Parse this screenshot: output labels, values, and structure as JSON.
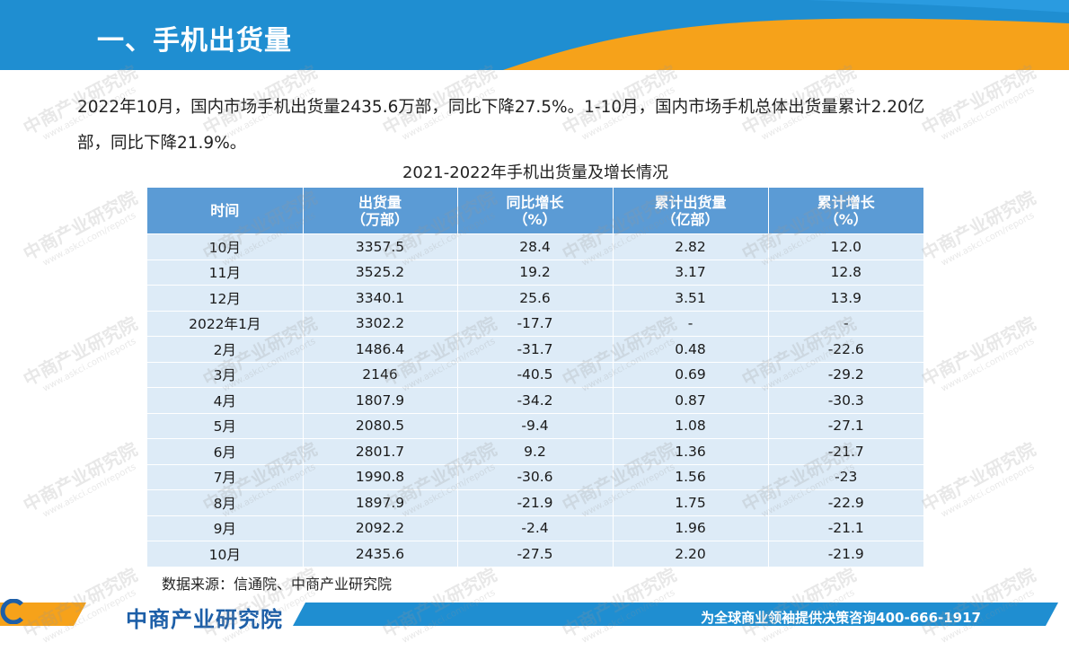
{
  "header": {
    "title": "一、手机出货量",
    "colors": {
      "bar": "#1f8ed1",
      "accent": "#f6a21a"
    }
  },
  "intro": {
    "line1": "2022年10月，国内市场手机出货量2435.6万部，同比下降27.5%。1-10月，国内市场手机总体出货量累计2.20亿",
    "line2": "部，同比下降21.9%。"
  },
  "table": {
    "caption": "2021-2022年手机出货量及增长情况",
    "headers": [
      {
        "line1": "时间",
        "line2": ""
      },
      {
        "line1": "出货量",
        "line2": "（万部）"
      },
      {
        "line1": "同比增长",
        "line2": "（%）"
      },
      {
        "line1": "累计出货量",
        "line2": "（亿部）"
      },
      {
        "line1": "累计增长",
        "line2": "（%）"
      }
    ],
    "rows": [
      [
        "10月",
        "3357.5",
        "28.4",
        "2.82",
        "12.0"
      ],
      [
        "11月",
        "3525.2",
        "19.2",
        "3.17",
        "12.8"
      ],
      [
        "12月",
        "3340.1",
        "25.6",
        "3.51",
        "13.9"
      ],
      [
        "2022年1月",
        "3302.2",
        "-17.7",
        "-",
        "-"
      ],
      [
        "2月",
        "1486.4",
        "-31.7",
        "0.48",
        "-22.6"
      ],
      [
        "3月",
        "2146",
        "-40.5",
        "0.69",
        "-29.2"
      ],
      [
        "4月",
        "1807.9",
        "-34.2",
        "0.87",
        "-30.3"
      ],
      [
        "5月",
        "2080.5",
        "-9.4",
        "1.08",
        "-27.1"
      ],
      [
        "6月",
        "2801.7",
        "9.2",
        "1.36",
        "-21.7"
      ],
      [
        "7月",
        "1990.8",
        "-30.6",
        "1.56",
        "-23"
      ],
      [
        "8月",
        "1897.9",
        "-21.9",
        "1.75",
        "-22.9"
      ],
      [
        "9月",
        "2092.2",
        "-2.4",
        "1.96",
        "-21.1"
      ],
      [
        "10月",
        "2435.6",
        "-27.5",
        "2.20",
        "-21.9"
      ]
    ]
  },
  "source": "数据来源：信通院、中商产业研究院",
  "footer": {
    "logo_text": "中商产业研究院",
    "slogan": "为全球商业领袖提供决策咨询400-666-1917"
  },
  "watermark": {
    "cn": "中商产业研究院",
    "url": "www.askci.com/reports"
  }
}
